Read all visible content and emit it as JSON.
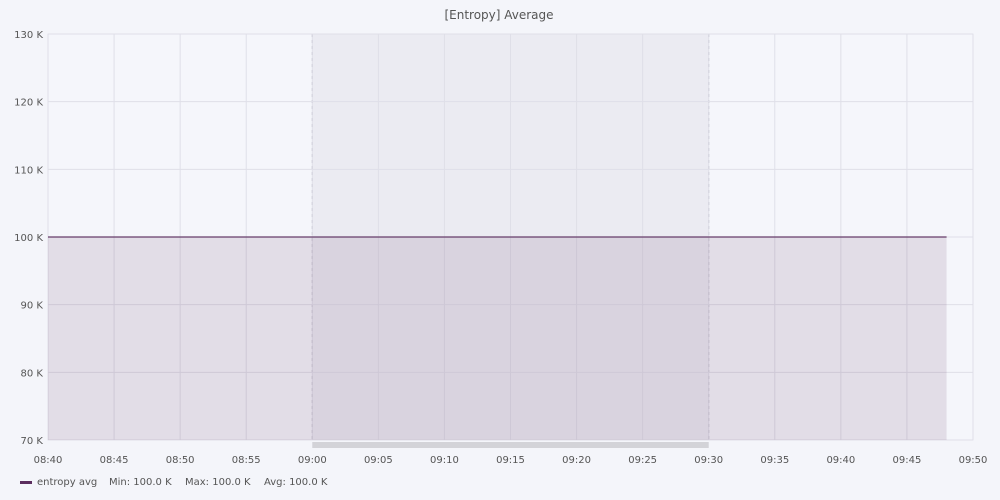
{
  "chart_data": {
    "type": "area",
    "title": "[Entropy] Average",
    "xlabel": "",
    "ylabel": "",
    "ylim": [
      70000,
      130000
    ],
    "xlim": [
      "08:40",
      "09:50"
    ],
    "x_ticks": [
      "08:40",
      "08:45",
      "08:50",
      "08:55",
      "09:00",
      "09:05",
      "09:10",
      "09:15",
      "09:20",
      "09:25",
      "09:30",
      "09:35",
      "09:40",
      "09:45",
      "09:50"
    ],
    "y_ticks": [
      {
        "value": 70000,
        "label": "70 K"
      },
      {
        "value": 80000,
        "label": "80 K"
      },
      {
        "value": 90000,
        "label": "90 K"
      },
      {
        "value": 100000,
        "label": "100 K"
      },
      {
        "value": 110000,
        "label": "110 K"
      },
      {
        "value": 120000,
        "label": "120 K"
      },
      {
        "value": 130000,
        "label": "130 K"
      }
    ],
    "grid": true,
    "highlight_range": [
      "09:00",
      "09:30"
    ],
    "legend_position": "bottom-left",
    "series": [
      {
        "name": "entropy avg",
        "color": "#5b2d5e",
        "x": [
          "08:40",
          "09:48"
        ],
        "values": [
          100000,
          100000
        ],
        "stats": {
          "min": "Min: 100.0 K",
          "max": "Max: 100.0 K",
          "avg": "Avg: 100.0 K"
        }
      }
    ]
  }
}
